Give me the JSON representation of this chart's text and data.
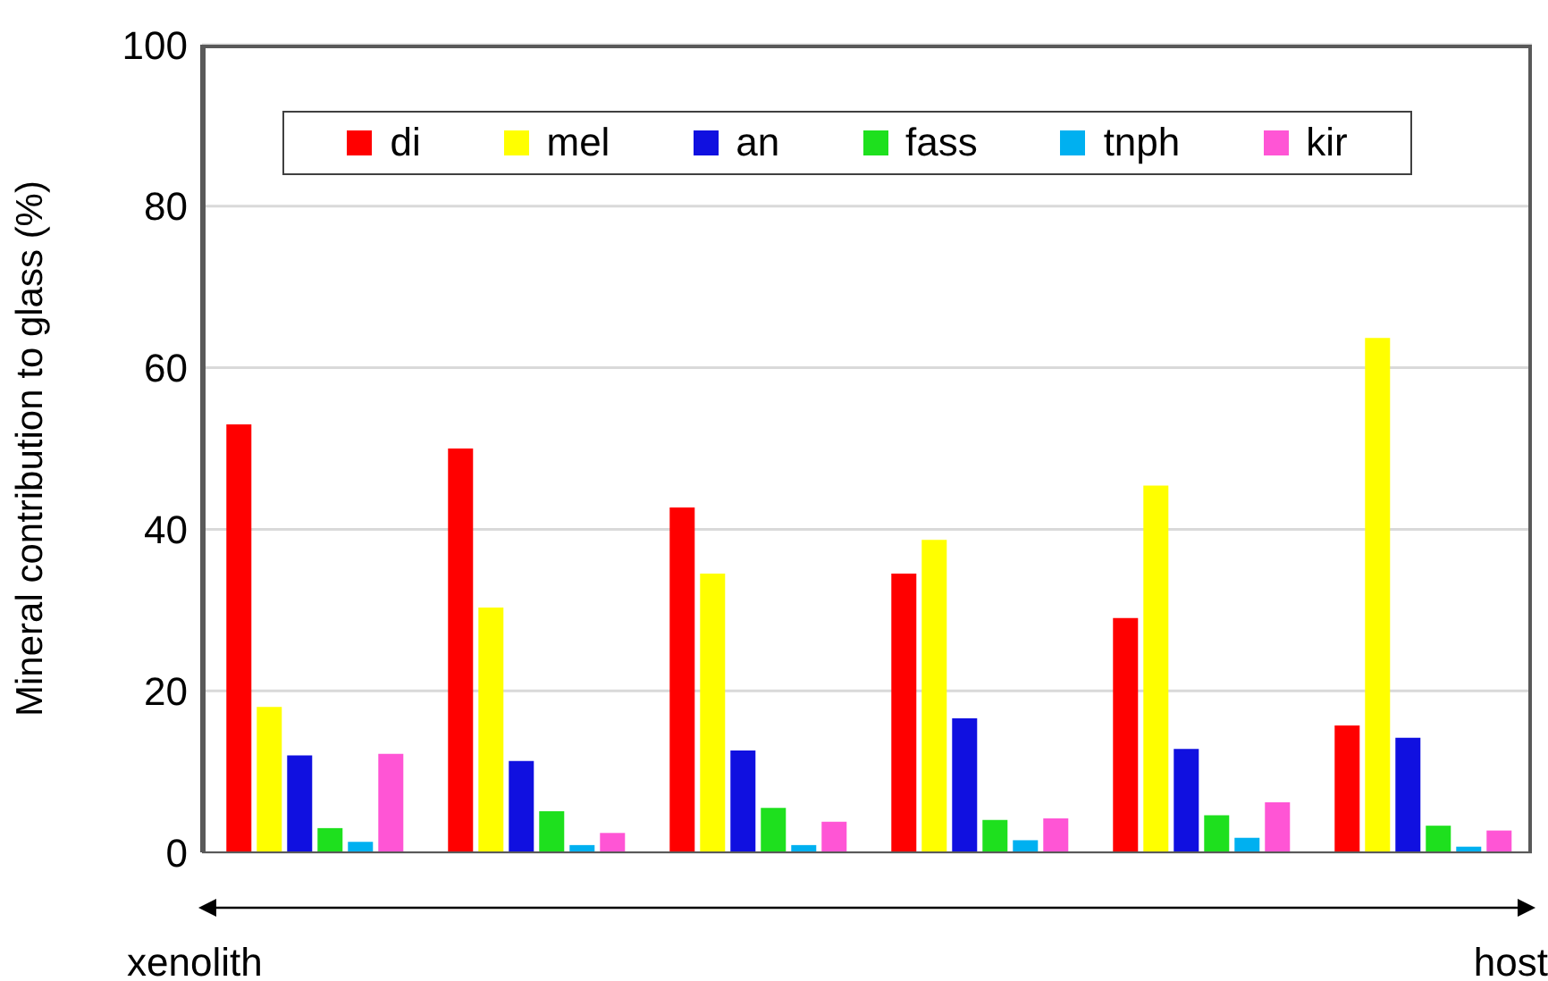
{
  "chart_data": {
    "type": "bar",
    "ylabel": "Mineral contribution to glass (%)",
    "categories": [
      null,
      null,
      null,
      null,
      null,
      null
    ],
    "series": [
      {
        "name": "di",
        "color": "#ff0000",
        "values": [
          53,
          50,
          42.7,
          34.5,
          29,
          15.7
        ]
      },
      {
        "name": "mel",
        "color": "#ffff00",
        "values": [
          18,
          30.3,
          34.5,
          38.7,
          45.4,
          63.7
        ]
      },
      {
        "name": "an",
        "color": "#1010e0",
        "values": [
          12,
          11.3,
          12.6,
          16.6,
          12.8,
          14.2
        ]
      },
      {
        "name": "fass",
        "color": "#1ee01e",
        "values": [
          3,
          5.1,
          5.5,
          4,
          4.6,
          3.3
        ]
      },
      {
        "name": "tnph",
        "color": "#00b0f0",
        "values": [
          1.3,
          0.9,
          0.9,
          1.5,
          1.8,
          0.7
        ]
      },
      {
        "name": "kir",
        "color": "#ff55d5",
        "values": [
          12.2,
          2.4,
          3.8,
          4.2,
          6.2,
          2.7
        ]
      }
    ],
    "ylim": [
      0,
      100
    ],
    "yticks": [
      0,
      20,
      40,
      60,
      80,
      100
    ],
    "grid": "y",
    "legend": "top",
    "annotations": [
      "xenolith",
      "host"
    ]
  }
}
